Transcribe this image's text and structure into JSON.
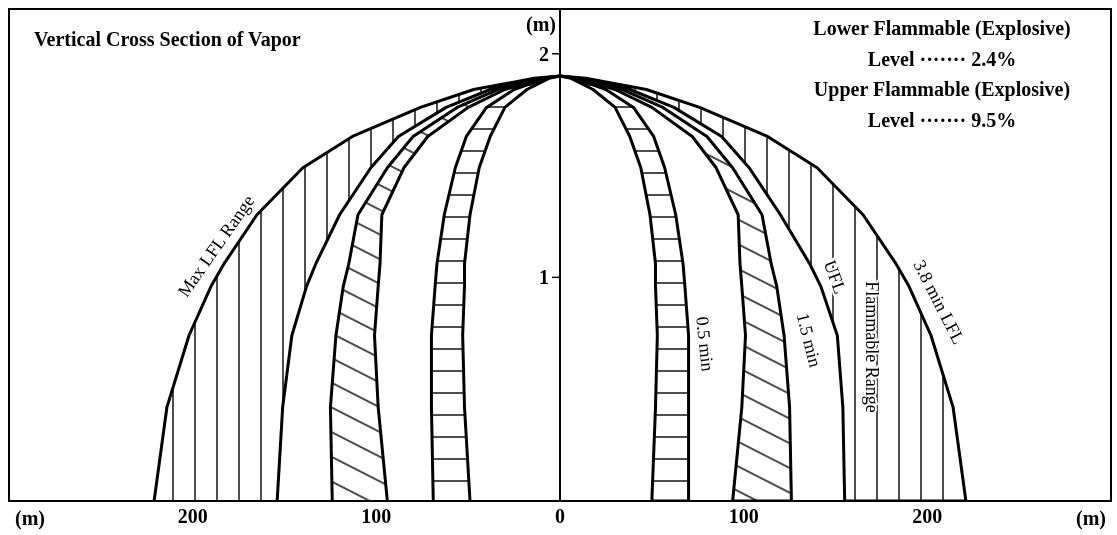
{
  "chart_data": {
    "type": "area",
    "title": "Vertical Cross Section of Vapor",
    "xlabel": "(m)",
    "ylabel": "(m)",
    "annotations": [
      "(m)",
      "Lower Flammable (Explosive)\nLevel ······· 2.4%",
      "Upper Flammable (Explosive)\nLevel ······· 9.5%",
      "Max LFL Range",
      "0.5 min",
      "UFL",
      "1.5 min",
      "Flammable Range",
      "3.8 min LFL"
    ],
    "series": [
      {
        "color": "#000000",
        "x": [
          -221,
          -214,
          -202,
          -190,
          -183,
          -165,
          -140,
          -113,
          -76,
          -47,
          -14,
          0,
          14,
          47,
          76,
          113,
          140,
          165,
          183,
          190,
          202,
          214,
          221,
          155,
          154,
          151,
          142,
          136,
          120,
          103,
          88,
          62,
          38,
          12,
          0,
          -12,
          -38,
          -62,
          -88,
          -103,
          -120,
          -133,
          -138,
          -146,
          -151,
          -154
        ],
        "values": [
          0,
          0.42,
          0.74,
          0.96,
          1.06,
          1.28,
          1.49,
          1.63,
          1.76,
          1.84,
          1.89,
          1.9,
          1.89,
          1.84,
          1.76,
          1.63,
          1.49,
          1.28,
          1.06,
          0.96,
          0.74,
          0.42,
          0,
          0,
          0.42,
          0.74,
          0.96,
          1.06,
          1.28,
          1.49,
          1.63,
          1.76,
          1.84,
          1.89,
          1.9,
          1.89,
          1.84,
          1.76,
          1.63,
          1.49,
          1.28,
          1.06,
          0.96,
          0.74,
          0.42,
          0
        ]
      },
      {
        "color": "#000000",
        "x": [
          -124,
          -125,
          -122,
          -118,
          -115,
          -110,
          -94,
          -80,
          -56,
          -34,
          -11,
          0,
          11,
          34,
          56,
          80,
          94,
          110,
          115,
          118,
          122,
          125,
          126,
          94,
          99,
          101,
          99,
          98,
          97,
          85,
          72,
          50,
          30,
          10,
          0,
          -10,
          -30,
          -50,
          -72,
          -85,
          -97,
          -98,
          -99,
          -101,
          -99,
          -94
        ],
        "values": [
          0,
          0.42,
          0.74,
          0.96,
          1.06,
          1.28,
          1.49,
          1.63,
          1.76,
          1.84,
          1.89,
          1.9,
          1.89,
          1.84,
          1.76,
          1.63,
          1.49,
          1.28,
          1.06,
          0.96,
          0.74,
          0.42,
          0,
          0,
          0.42,
          0.74,
          0.96,
          1.06,
          1.28,
          1.49,
          1.63,
          1.76,
          1.84,
          1.89,
          1.9,
          1.89,
          1.84,
          1.76,
          1.63,
          1.49,
          1.28,
          1.06,
          0.96,
          0.74,
          0.42,
          0
        ]
      },
      {
        "color": "#000000",
        "x": [
          -69,
          -70,
          -70,
          -68,
          -67,
          -63,
          -57,
          -51,
          -40,
          -25,
          -8,
          0,
          8,
          25,
          40,
          51,
          57,
          63,
          67,
          68,
          70,
          70,
          70,
          50,
          52,
          53,
          52,
          52,
          49,
          44,
          38,
          30,
          18,
          6,
          0,
          -6,
          -18,
          -30,
          -38,
          -44,
          -49,
          -52,
          -52,
          -53,
          -52,
          -49
        ],
        "values": [
          0,
          0.42,
          0.74,
          0.96,
          1.06,
          1.28,
          1.49,
          1.63,
          1.76,
          1.84,
          1.89,
          1.9,
          1.89,
          1.84,
          1.76,
          1.63,
          1.49,
          1.28,
          1.06,
          0.96,
          0.74,
          0.42,
          0,
          0,
          0.42,
          0.74,
          0.96,
          1.06,
          1.28,
          1.49,
          1.63,
          1.76,
          1.84,
          1.89,
          1.9,
          1.89,
          1.84,
          1.76,
          1.63,
          1.49,
          1.28,
          1.06,
          0.96,
          0.74,
          0.42,
          0
        ]
      }
    ],
    "xlim": [
      -300,
      300
    ],
    "xticks": [
      {
        "value": -200,
        "label": "200"
      },
      {
        "value": -100,
        "label": "100"
      },
      0,
      100,
      200
    ],
    "ylim": [
      0,
      2.2
    ],
    "yticks": [
      1,
      2
    ]
  }
}
